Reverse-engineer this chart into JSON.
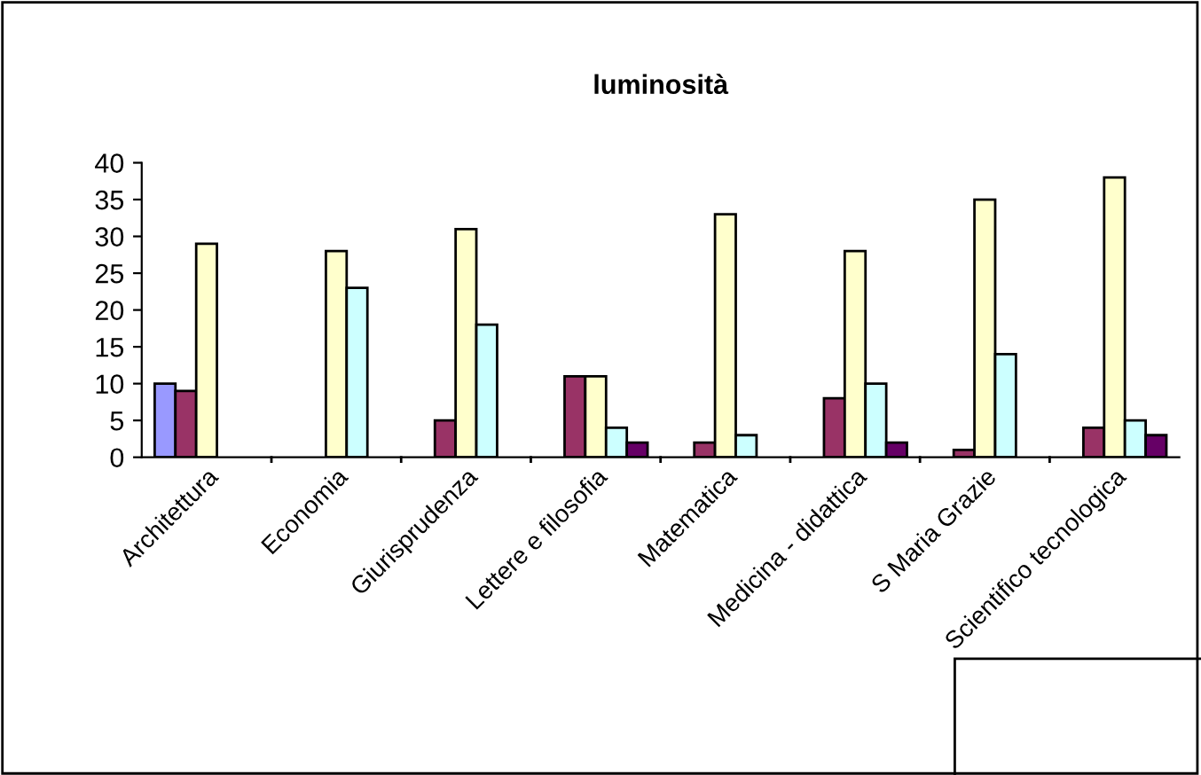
{
  "chart_data": {
    "type": "bar",
    "title": "luminosità",
    "categories": [
      "Architettura",
      "Economia",
      "Giurisprudenza",
      "Lettere e filosofia",
      "Matematica",
      "Medicina - didattica",
      "S Maria Grazie",
      "Scientifico tecnologica"
    ],
    "series": [
      {
        "color": "#9999ff",
        "values": [
          10,
          null,
          null,
          null,
          null,
          null,
          null,
          null
        ]
      },
      {
        "color": "#993366",
        "values": [
          9,
          null,
          5,
          11,
          2,
          8,
          1,
          4
        ]
      },
      {
        "color": "#ffffcc",
        "values": [
          29,
          28,
          31,
          11,
          33,
          28,
          35,
          38
        ]
      },
      {
        "color": "#ccffff",
        "values": [
          null,
          23,
          18,
          4,
          3,
          10,
          14,
          5
        ]
      },
      {
        "color": "#660066",
        "values": [
          null,
          null,
          null,
          2,
          null,
          2,
          null,
          3
        ]
      }
    ],
    "ylim": [
      0,
      40
    ],
    "yticks": [
      0,
      5,
      10,
      15,
      20,
      25,
      30,
      35,
      40
    ],
    "grid": false,
    "legend": false
  }
}
